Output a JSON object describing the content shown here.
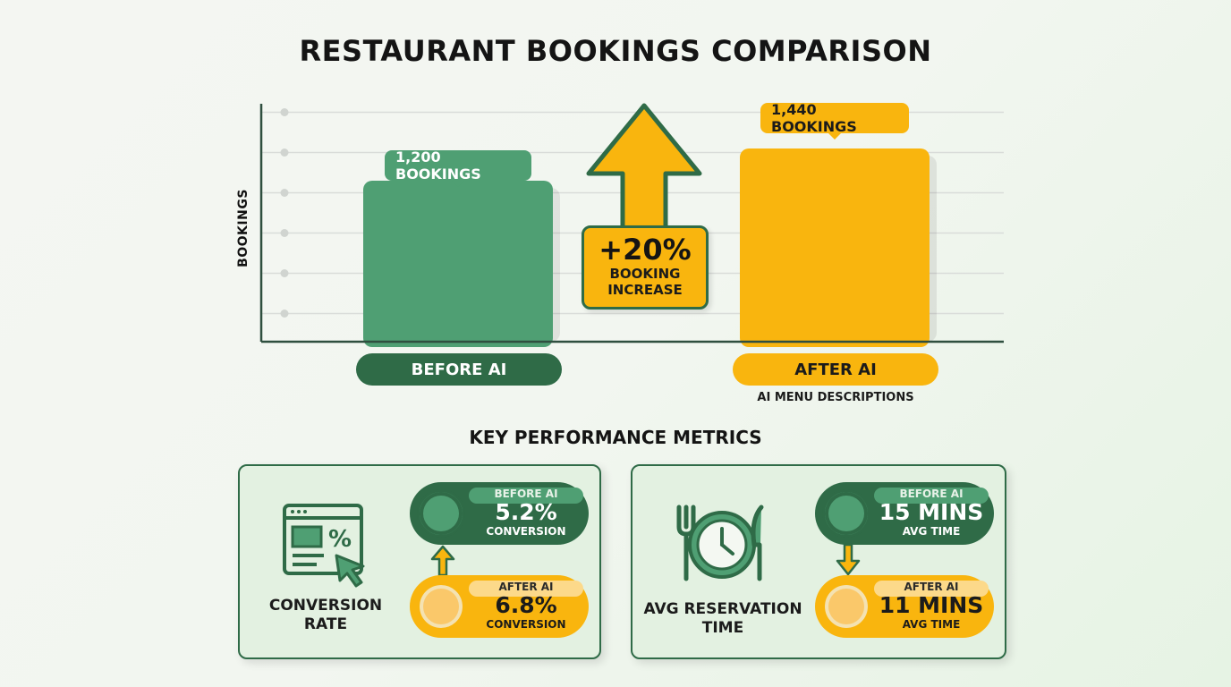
{
  "chart_data": {
    "type": "bar",
    "title": "RESTAURANT BOOKINGS COMPARISON",
    "ylabel": "BOOKINGS",
    "xlabel": "",
    "categories": [
      "BEFORE AI",
      "AFTER AI"
    ],
    "values": [
      1200,
      1440
    ],
    "value_labels": [
      "1,200 BOOKINGS",
      "1,440 BOOKINGS"
    ],
    "category_sublabels": [
      "",
      "AI MENU DESCRIPTIONS"
    ],
    "ylim": [
      0,
      1800
    ],
    "grid": true,
    "colors": [
      "#4f9f73",
      "#f9b50e"
    ],
    "annotation": {
      "value": "+20%",
      "text": "BOOKING\nINCREASE"
    }
  },
  "metrics": {
    "section_title": "KEY PERFORMANCE METRICS",
    "cards": [
      {
        "label": "CONVERSION\nRATE",
        "icon": "browser-percent-cursor-icon",
        "before": {
          "tag": "BEFORE AI",
          "value": "5.2%",
          "unit": "CONVERSION"
        },
        "after": {
          "tag": "AFTER AI",
          "value": "6.8%",
          "unit": "CONVERSION"
        },
        "direction": "up"
      },
      {
        "label": "AVG RESERVATION\nTIME",
        "icon": "clock-fork-knife-icon",
        "before": {
          "tag": "BEFORE AI",
          "value": "15 MINS",
          "unit": "AVG TIME"
        },
        "after": {
          "tag": "AFTER AI",
          "value": "11 MINS",
          "unit": "AVG TIME"
        },
        "direction": "down"
      }
    ]
  },
  "colors": {
    "green_dark": "#2f6b47",
    "green": "#4f9f73",
    "yellow": "#f9b50e",
    "axis": "#2f4f3f"
  }
}
